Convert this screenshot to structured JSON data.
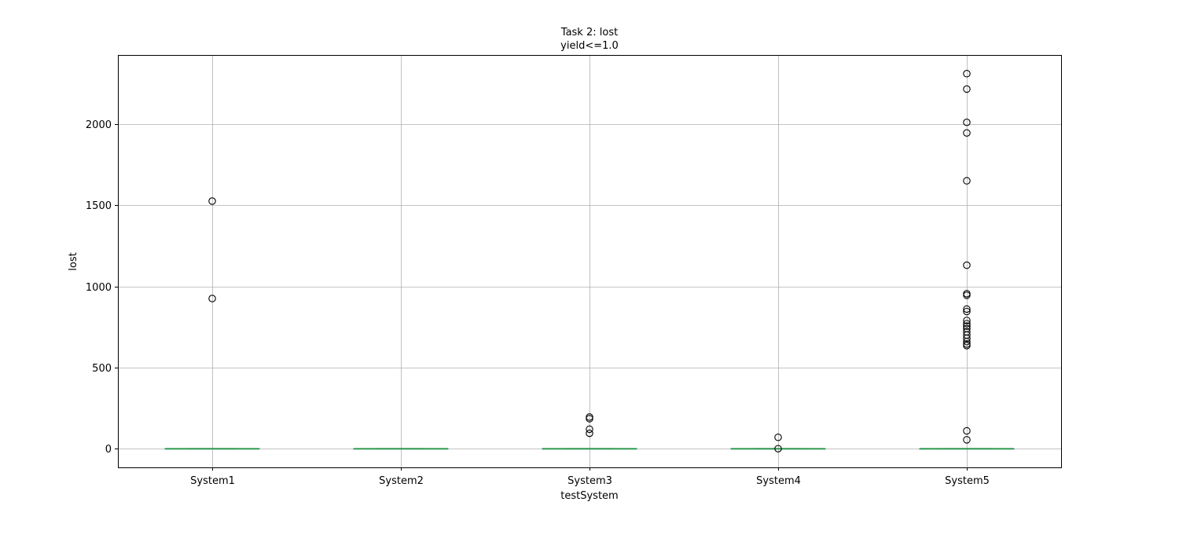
{
  "chart_data": {
    "type": "box",
    "title": "Task 2: lost",
    "subtitle": "yield<=1.0",
    "xlabel": "testSystem",
    "ylabel": "lost",
    "categories": [
      "System1",
      "System2",
      "System3",
      "System4",
      "System5"
    ],
    "ylim": [
      -115,
      2425
    ],
    "yticks": [
      0,
      500,
      1000,
      1500,
      2000
    ],
    "grid": true,
    "boxes": [
      {
        "category": "System1",
        "q1": 0,
        "median": 0,
        "q3": 0,
        "whisker_low": 0,
        "whisker_high": 0,
        "outliers": [
          925,
          1525
        ]
      },
      {
        "category": "System2",
        "q1": 0,
        "median": 0,
        "q3": 0,
        "whisker_low": 0,
        "whisker_high": 0,
        "outliers": []
      },
      {
        "category": "System3",
        "q1": 0,
        "median": 0,
        "q3": 0,
        "whisker_low": 0,
        "whisker_high": 0,
        "outliers": [
          95,
          120,
          185,
          195
        ]
      },
      {
        "category": "System4",
        "q1": 0,
        "median": 0,
        "q3": 0,
        "whisker_low": 0,
        "whisker_high": 0,
        "outliers": [
          0,
          70
        ]
      },
      {
        "category": "System5",
        "q1": 0,
        "median": 0,
        "q3": 0,
        "whisker_low": 0,
        "whisker_high": 0,
        "outliers": [
          55,
          110,
          635,
          645,
          660,
          680,
          700,
          720,
          740,
          755,
          770,
          790,
          845,
          860,
          945,
          955,
          1130,
          1650,
          1945,
          2010,
          2215,
          2310
        ]
      }
    ],
    "colors": {
      "box": "#1f77b4",
      "median": "#2ca02c",
      "whisker": "#1f77b4",
      "outlier_edge": "#000000",
      "grid": "#b0b0b0",
      "frame": "#000000"
    }
  }
}
